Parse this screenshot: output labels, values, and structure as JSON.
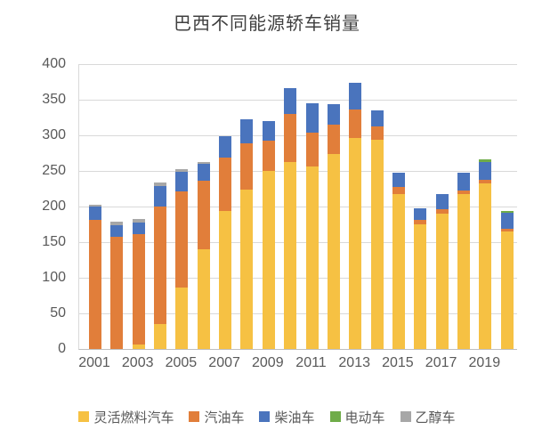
{
  "chart_data": {
    "type": "bar",
    "stacked": true,
    "title": "巴西不同能源轿车销量",
    "categories": [
      2001,
      2002,
      2003,
      2004,
      2005,
      2006,
      2007,
      2008,
      2009,
      2010,
      2011,
      2012,
      2013,
      2014,
      2015,
      2016,
      2017,
      2018,
      2019,
      2020
    ],
    "x_tick_labels": [
      "2001",
      "2003",
      "2005",
      "2007",
      "2009",
      "2011",
      "2013",
      "2015",
      "2017",
      "2019"
    ],
    "y_ticks": [
      0,
      50,
      100,
      150,
      200,
      250,
      300,
      350,
      400
    ],
    "ylim": [
      0,
      400
    ],
    "grid": true,
    "legend_position": "bottom",
    "series": [
      {
        "id": "flex-fuel",
        "name": "灵活燃料汽车",
        "color": "#F6C143",
        "values": [
          0,
          0,
          6,
          35,
          86,
          140,
          194,
          224,
          250,
          262,
          256,
          274,
          296,
          294,
          218,
          175,
          190,
          217,
          232,
          165
        ]
      },
      {
        "id": "gasoline",
        "name": "汽油车",
        "color": "#E17E3A",
        "values": [
          181,
          157,
          155,
          165,
          135,
          96,
          75,
          65,
          42,
          68,
          48,
          41,
          40,
          18,
          10,
          6,
          6,
          6,
          5,
          4
        ]
      },
      {
        "id": "diesel",
        "name": "柴油车",
        "color": "#4A74BD",
        "values": [
          19,
          17,
          17,
          29,
          28,
          24,
          30,
          33,
          28,
          36,
          41,
          29,
          38,
          23,
          20,
          17,
          22,
          25,
          26,
          22
        ]
      },
      {
        "id": "electric",
        "name": "电动车",
        "color": "#6FAC49",
        "values": [
          0,
          0,
          0,
          0,
          0,
          0,
          0,
          0,
          0,
          0,
          0,
          0,
          0,
          0,
          0,
          0,
          0,
          0,
          3,
          3
        ]
      },
      {
        "id": "ethanol",
        "name": "乙醇车",
        "color": "#A7A7A7",
        "values": [
          2,
          5,
          5,
          5,
          4,
          2,
          0,
          0,
          0,
          0,
          0,
          0,
          0,
          0,
          0,
          0,
          0,
          0,
          0,
          0
        ]
      }
    ],
    "style": {
      "grid_color": "#D9D9D9",
      "axis_line_color": "#BFBFBF",
      "tick_label_color": "#595959",
      "title_color": "#404040",
      "background": "#FFFFFF"
    }
  }
}
